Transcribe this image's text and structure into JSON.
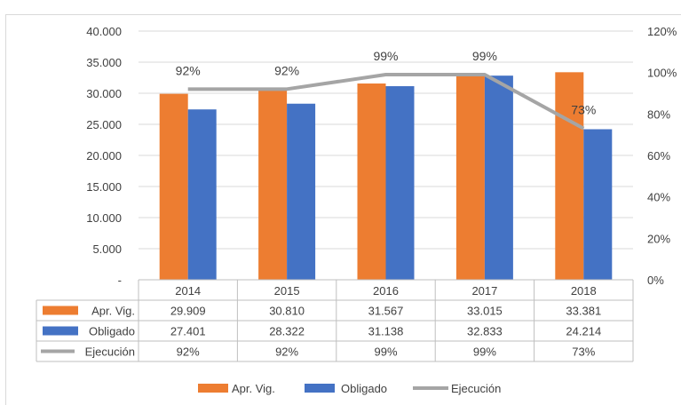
{
  "chart_data": {
    "type": "bar",
    "categories": [
      "2014",
      "2015",
      "2016",
      "2017",
      "2018"
    ],
    "series": [
      {
        "name": "Apr. Vig.",
        "type": "bar",
        "axis": "left",
        "color": "#ED7D31",
        "values": [
          29909,
          30810,
          31567,
          33015,
          33381
        ],
        "display": [
          "29.909",
          "30.810",
          "31.567",
          "33.015",
          "33.381"
        ]
      },
      {
        "name": "Obligado",
        "type": "bar",
        "axis": "left",
        "color": "#4472C4",
        "values": [
          27401,
          28322,
          31138,
          32833,
          24214
        ],
        "display": [
          "27.401",
          "28.322",
          "31.138",
          "32.833",
          "24.214"
        ]
      },
      {
        "name": "Ejecución",
        "type": "line",
        "axis": "right",
        "color": "#A5A5A5",
        "values": [
          92,
          92,
          99,
          99,
          73
        ],
        "display": [
          "92%",
          "92%",
          "99%",
          "99%",
          "73%"
        ]
      }
    ],
    "y_left": {
      "lim": [
        0,
        40000
      ],
      "ticks": [
        "-",
        "5.000",
        "10.000",
        "15.000",
        "20.000",
        "25.000",
        "30.000",
        "35.000",
        "40.000"
      ]
    },
    "y_right": {
      "lim": [
        0,
        120
      ],
      "ticks": [
        "0%",
        "20%",
        "40%",
        "60%",
        "80%",
        "100%",
        "120%"
      ]
    },
    "gridlines": true,
    "legend_position": "bottom",
    "data_table": true
  }
}
